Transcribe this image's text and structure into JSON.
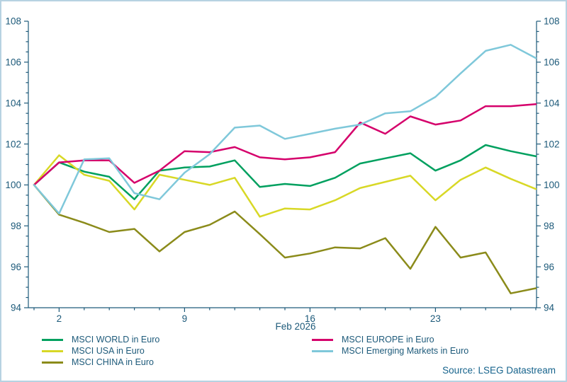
{
  "chart_data": {
    "type": "line",
    "title": "",
    "xlabel": "Feb 2026",
    "ylabel": "",
    "ylim": [
      94,
      108
    ],
    "y_major_step": 2,
    "y_minor_step": 0.5,
    "y_tick_labels": [
      "94",
      "96",
      "98",
      "100",
      "102",
      "104",
      "106",
      "108"
    ],
    "grid": false,
    "legend_position": "bottom",
    "axis_color": "#1d5a7a",
    "x": [
      "Jan 30",
      "Feb 2",
      "Feb 3",
      "Feb 4",
      "Feb 5",
      "Feb 6",
      "Feb 9",
      "Feb 10",
      "Feb 11",
      "Feb 12",
      "Feb 13",
      "Feb 16",
      "Feb 17",
      "Feb 18",
      "Feb 19",
      "Feb 20",
      "Feb 23",
      "Feb 24",
      "Feb 25",
      "Feb 26",
      "Feb 27"
    ],
    "x_major_ticks": {
      "indices": [
        1,
        6,
        11,
        16
      ],
      "labels": [
        "2",
        "9",
        "16",
        "23"
      ]
    },
    "series": [
      {
        "name": "MSCI WORLD in Euro",
        "color": "#00a05f",
        "values": [
          100,
          101.1,
          100.65,
          100.4,
          99.3,
          100.7,
          100.85,
          100.9,
          101.2,
          99.9,
          100.05,
          99.95,
          100.35,
          101.05,
          101.3,
          101.55,
          100.7,
          101.2,
          101.95,
          101.65,
          101.4
        ]
      },
      {
        "name": "MSCI USA in Euro",
        "color": "#d8d826",
        "values": [
          100,
          101.45,
          100.5,
          100.2,
          98.8,
          100.5,
          100.25,
          100.0,
          100.35,
          98.45,
          98.85,
          98.8,
          99.25,
          99.85,
          100.15,
          100.45,
          99.25,
          100.25,
          100.85,
          100.3,
          99.8
        ]
      },
      {
        "name": "MSCI CHINA in Euro",
        "color": "#8b8b1a",
        "values": [
          100,
          98.55,
          98.15,
          97.7,
          97.85,
          96.75,
          97.7,
          98.05,
          98.7,
          97.6,
          96.45,
          96.65,
          96.95,
          96.9,
          97.4,
          95.9,
          97.95,
          96.45,
          96.7,
          94.7,
          94.95
        ]
      },
      {
        "name": "MSCI EUROPE in Euro",
        "color": "#d5006b",
        "values": [
          100,
          101.1,
          101.2,
          101.2,
          100.1,
          100.7,
          101.65,
          101.6,
          101.85,
          101.35,
          101.25,
          101.35,
          101.6,
          103.05,
          102.5,
          103.35,
          102.95,
          103.15,
          103.85,
          103.85,
          103.95
        ]
      },
      {
        "name": "MSCI Emerging Markets in Euro",
        "color": "#7fc8da",
        "values": [
          100,
          98.6,
          101.25,
          101.3,
          99.6,
          99.3,
          100.6,
          101.5,
          102.8,
          102.9,
          102.25,
          102.5,
          102.75,
          102.95,
          103.5,
          103.6,
          104.3,
          105.45,
          106.55,
          106.85,
          106.2
        ]
      }
    ]
  },
  "footer": {
    "source_note": "Source: LSEG Datastream"
  }
}
